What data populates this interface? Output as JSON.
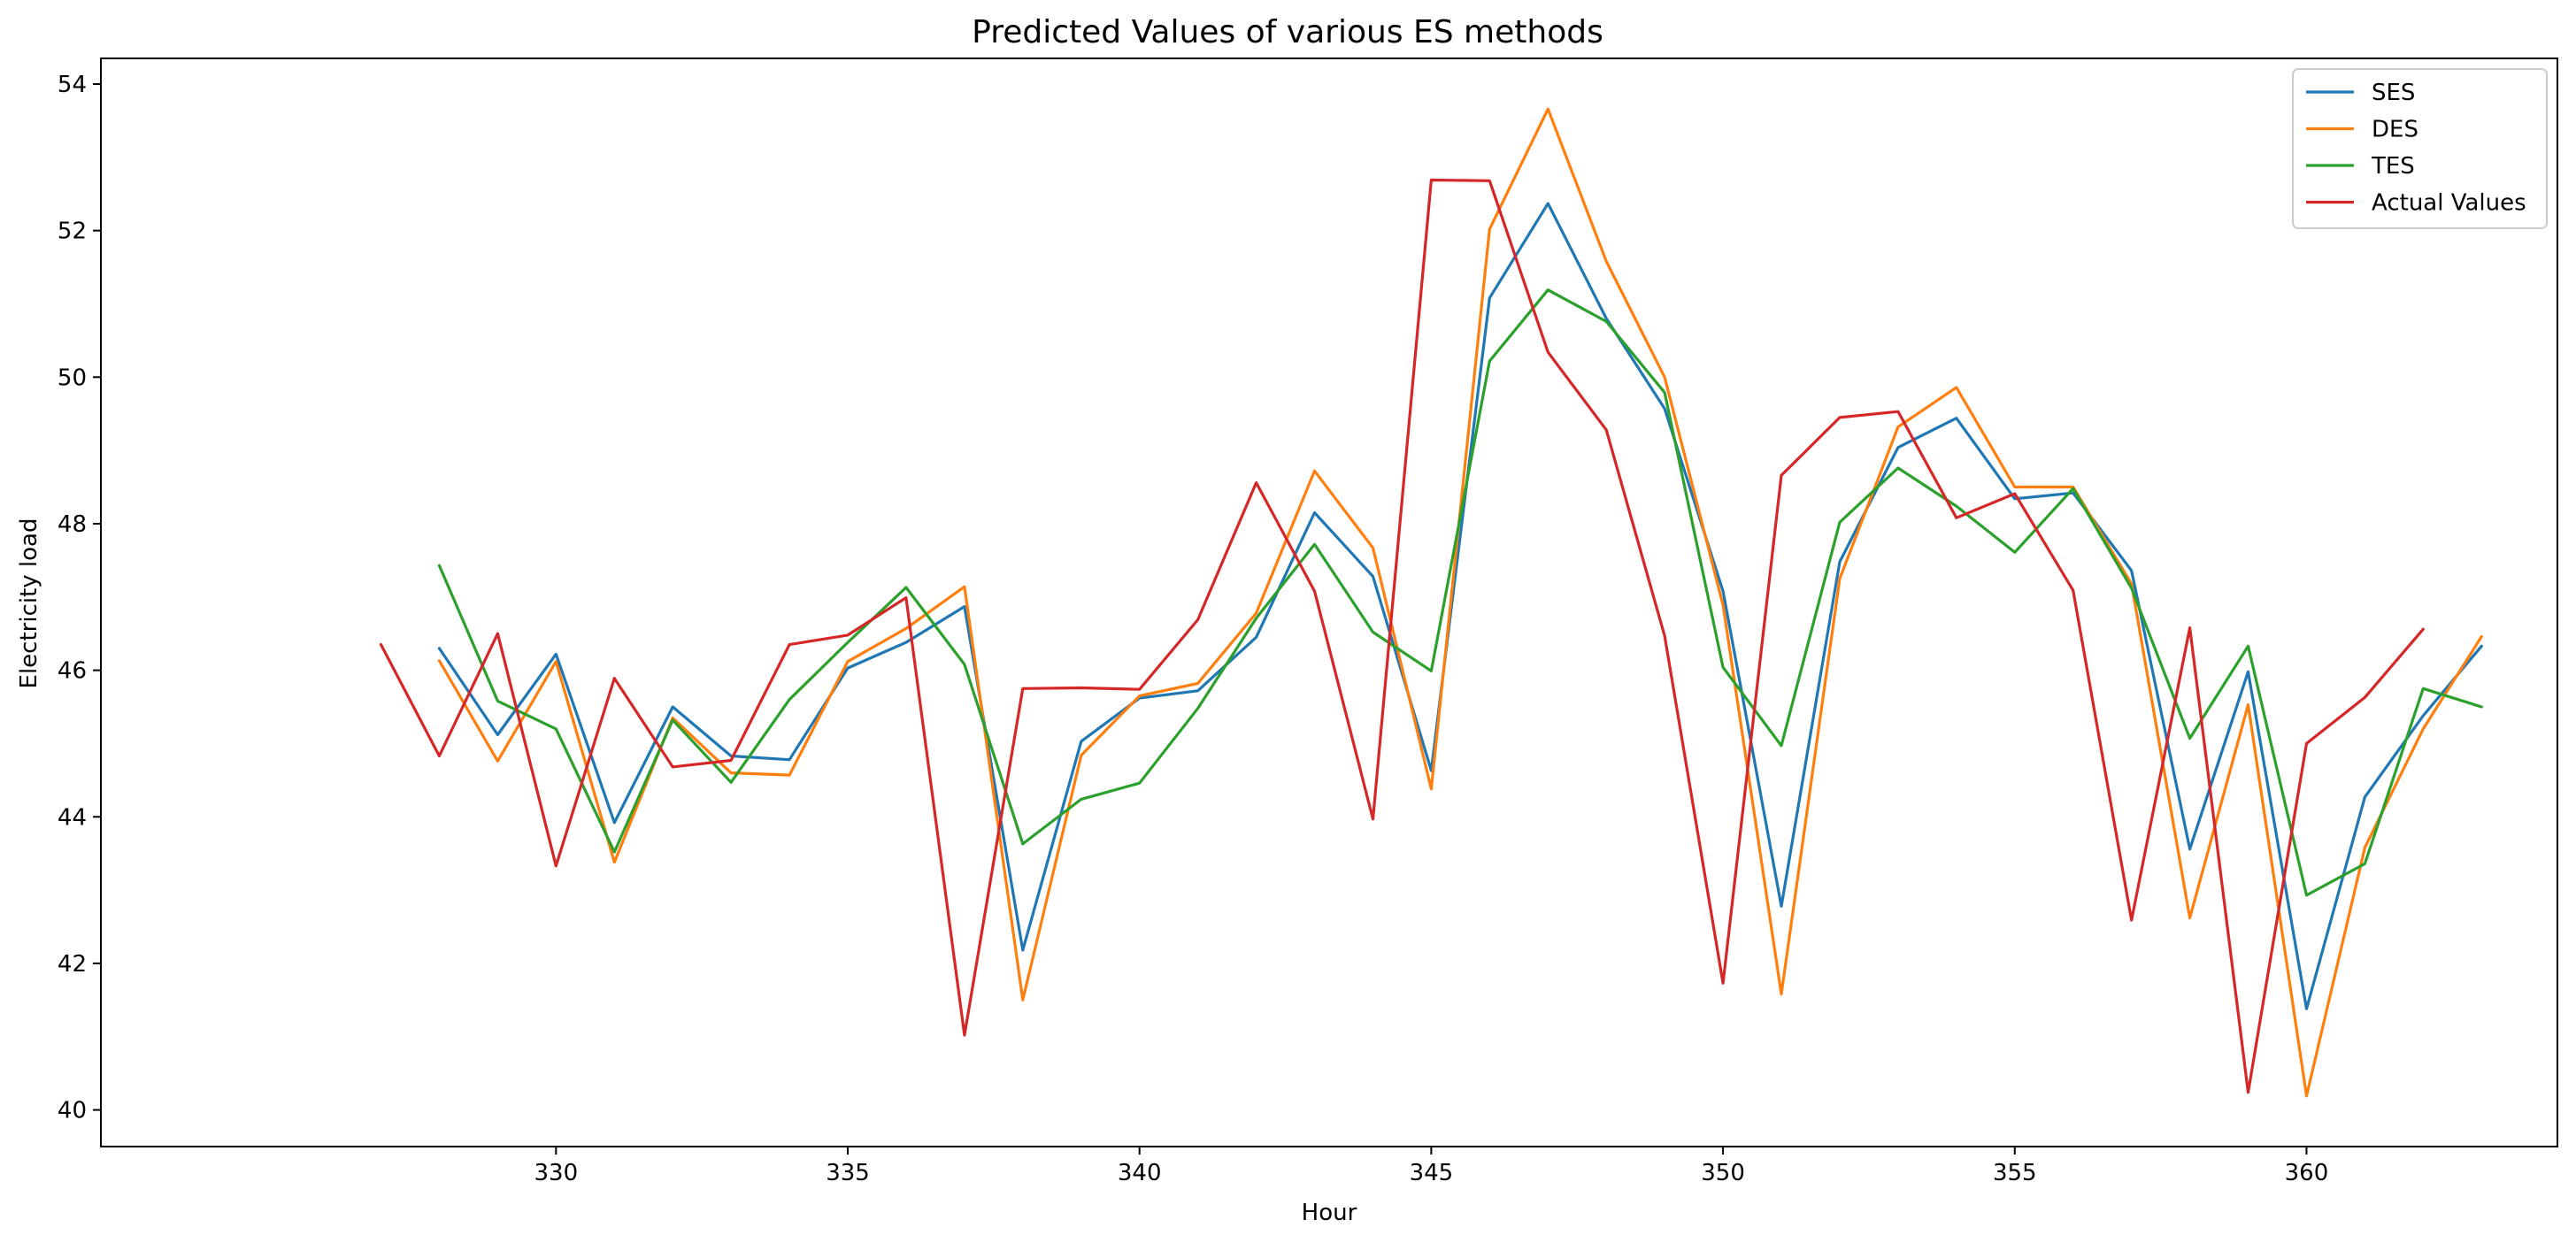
{
  "chart_data": {
    "type": "line",
    "title": "Predicted Values of various ES methods",
    "xlabel": "Hour",
    "ylabel": "Electricity load",
    "xlim": [
      322.2,
      364.3
    ],
    "ylim": [
      39.5,
      54.35
    ],
    "x_ticks": [
      330,
      335,
      340,
      345,
      350,
      355,
      360
    ],
    "y_ticks": [
      40,
      42,
      44,
      46,
      48,
      50,
      52,
      54
    ],
    "grid": false,
    "legend_position": "top-right",
    "series": [
      {
        "name": "SES",
        "color": "#1f77b4",
        "x": [
          328,
          329,
          330,
          331,
          332,
          333,
          334,
          335,
          336,
          337,
          338,
          339,
          340,
          341,
          342,
          343,
          344,
          345,
          346,
          347,
          348,
          349,
          350,
          351,
          352,
          353,
          354,
          355,
          356,
          357,
          358,
          359,
          360,
          361,
          362,
          363
        ],
        "values": [
          46.3,
          45.12,
          46.22,
          43.92,
          45.5,
          44.83,
          44.78,
          46.03,
          46.38,
          46.87,
          42.18,
          45.03,
          45.62,
          45.72,
          46.45,
          48.15,
          47.28,
          44.63,
          51.08,
          52.37,
          50.8,
          49.57,
          47.08,
          42.78,
          47.48,
          49.04,
          49.44,
          48.34,
          48.42,
          47.36,
          43.56,
          45.98,
          41.38,
          44.27,
          45.38,
          46.33
        ]
      },
      {
        "name": "DES",
        "color": "#ff7f0e",
        "x": [
          328,
          329,
          330,
          331,
          332,
          333,
          334,
          335,
          336,
          337,
          338,
          339,
          340,
          341,
          342,
          343,
          344,
          345,
          346,
          347,
          348,
          349,
          350,
          351,
          352,
          353,
          354,
          355,
          356,
          357,
          358,
          359,
          360,
          361,
          362,
          363
        ],
        "values": [
          46.13,
          44.76,
          46.12,
          43.38,
          45.35,
          44.6,
          44.57,
          46.12,
          46.57,
          47.14,
          41.5,
          44.84,
          45.65,
          45.82,
          46.78,
          48.72,
          47.67,
          44.38,
          52.02,
          53.66,
          51.58,
          50.0,
          46.89,
          41.58,
          47.25,
          49.32,
          49.86,
          48.5,
          48.5,
          47.18,
          42.62,
          45.53,
          40.19,
          43.58,
          45.2,
          46.46
        ]
      },
      {
        "name": "TES",
        "color": "#2ca02c",
        "x": [
          328,
          329,
          330,
          331,
          332,
          333,
          334,
          335,
          336,
          337,
          338,
          339,
          340,
          341,
          342,
          343,
          344,
          345,
          346,
          347,
          348,
          349,
          350,
          351,
          352,
          353,
          354,
          355,
          356,
          357,
          358,
          359,
          360,
          361,
          362,
          363
        ],
        "values": [
          47.43,
          45.58,
          45.2,
          43.52,
          45.32,
          44.47,
          45.6,
          46.38,
          47.13,
          46.08,
          43.63,
          44.24,
          44.46,
          45.48,
          46.71,
          47.72,
          46.52,
          45.99,
          50.22,
          51.19,
          50.76,
          49.79,
          46.04,
          44.97,
          48.02,
          48.76,
          48.24,
          47.61,
          48.48,
          47.12,
          45.07,
          46.33,
          42.93,
          43.36,
          45.75,
          45.5
        ]
      },
      {
        "name": "Actual Values",
        "color": "#d62728",
        "x": [
          327,
          328,
          329,
          330,
          331,
          332,
          333,
          334,
          335,
          336,
          337,
          338,
          339,
          340,
          341,
          342,
          343,
          344,
          345,
          346,
          347,
          348,
          349,
          350,
          351,
          352,
          353,
          354,
          355,
          356,
          357,
          358,
          359,
          360,
          361,
          362
        ],
        "values": [
          46.35,
          44.83,
          46.5,
          43.33,
          45.89,
          44.68,
          44.77,
          46.35,
          46.48,
          46.99,
          41.02,
          45.75,
          45.76,
          45.74,
          46.69,
          48.56,
          47.08,
          43.97,
          52.69,
          52.68,
          50.34,
          49.28,
          46.47,
          41.73,
          48.66,
          49.45,
          49.53,
          48.08,
          48.41,
          47.09,
          42.59,
          46.58,
          40.24,
          45.0,
          45.63,
          46.56
        ]
      }
    ]
  }
}
